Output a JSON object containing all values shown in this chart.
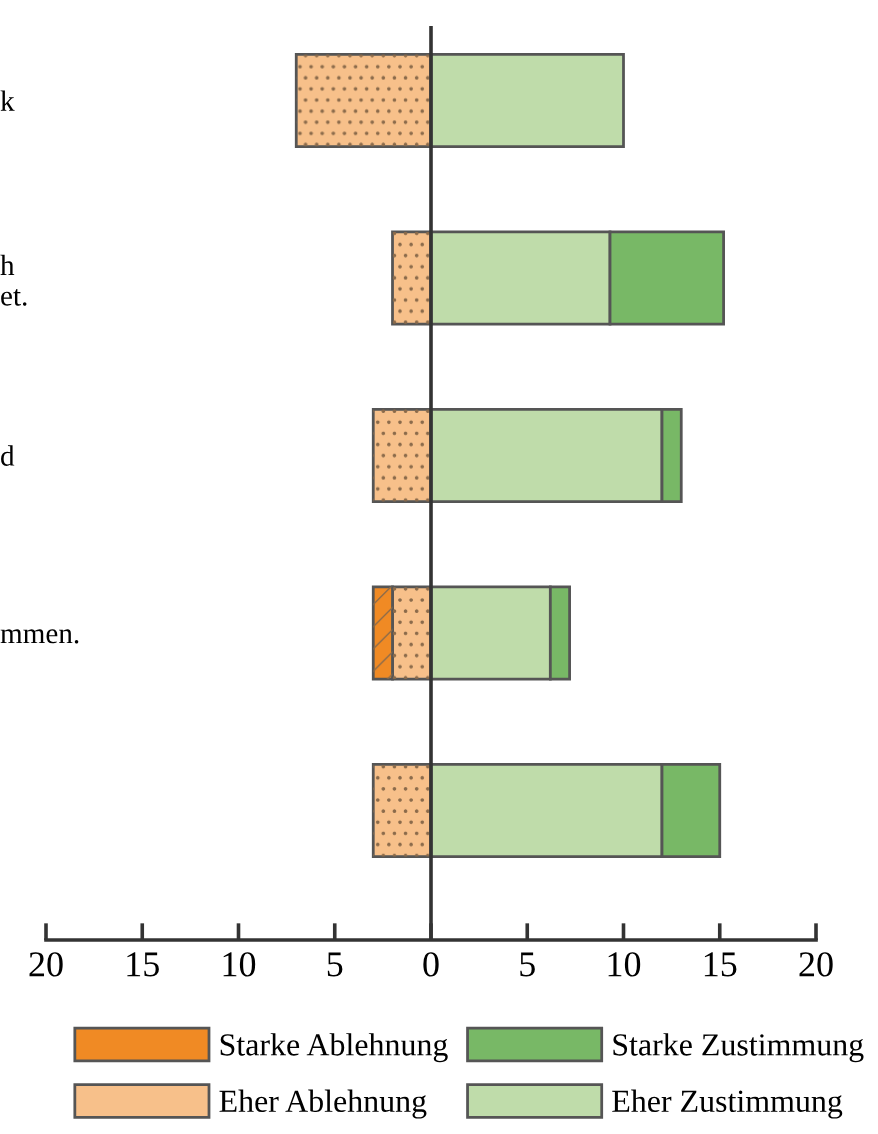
{
  "chart_data": {
    "type": "bar",
    "orientation": "horizontal",
    "stacked": true,
    "categories": [
      "k",
      "h\net.",
      "d",
      "mmen.",
      null
    ],
    "series": [
      {
        "name": "Eher Ablehnung",
        "color": "#f7c08a",
        "values": [
          -7,
          -2,
          -3,
          -2,
          -3
        ]
      },
      {
        "name": "Starke Ablehnung",
        "color": "#f08a24",
        "values": [
          null,
          null,
          null,
          -1,
          null
        ]
      },
      {
        "name": "Eher Zustimmung",
        "color": "#bfdcaa",
        "values": [
          10,
          9.3,
          12,
          6.2,
          12
        ]
      },
      {
        "name": "Starke Zustimmung",
        "color": "#78b866",
        "values": [
          null,
          5.9,
          1,
          1,
          3
        ]
      }
    ],
    "xlim": [
      -20,
      20
    ],
    "xticks": [
      {
        "value": -20,
        "label": "20"
      },
      {
        "value": -15,
        "label": "15"
      },
      {
        "value": -10,
        "label": "10"
      },
      {
        "value": -5,
        "label": "5"
      },
      0,
      5,
      10,
      15,
      20
    ],
    "ref_lines": [
      {
        "axis": "x",
        "value": 0
      }
    ],
    "grid": false,
    "legend": "bottom"
  }
}
